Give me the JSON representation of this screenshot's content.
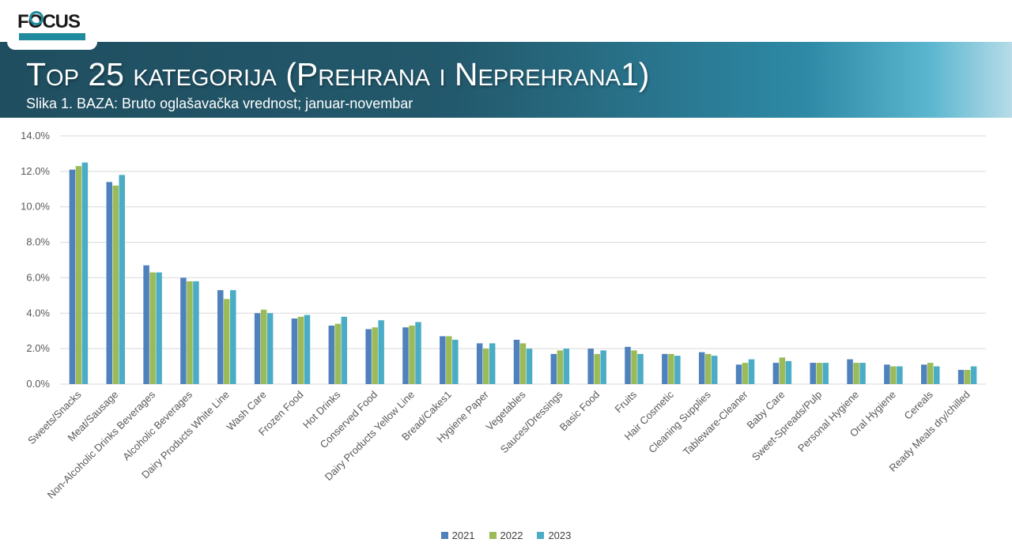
{
  "header": {
    "logo_text": "FOCUS",
    "title": "Top 25 kategorija (Prehrana i Neprehrana1)",
    "subtitle": "Slika 1. BAZA: Bruto oglašavačka vrednost; januar-novembar"
  },
  "colors": {
    "2021": "#4f81bd",
    "2022": "#9bbb59",
    "2023": "#4bacc6",
    "grid": "#d9d9d9"
  },
  "chart_data": {
    "type": "bar",
    "title": "",
    "xlabel": "",
    "ylabel": "",
    "ylim": [
      0,
      14
    ],
    "y_ticks": [
      "0.0%",
      "2.0%",
      "4.0%",
      "6.0%",
      "8.0%",
      "10.0%",
      "12.0%",
      "14.0%"
    ],
    "grid": true,
    "legend_position": "bottom",
    "categories": [
      "Sweets/Snacks",
      "Meat/Sausage",
      "Non-Alcoholic Drinks Beverages",
      "Alcoholic Beverages",
      "Dairy Products White Line",
      "Wash Care",
      "Frozen Food",
      "Hot Drinks",
      "Conserved Food",
      "Dairy Products Yellow Line",
      "Bread/Cakes1",
      "Hygiene Paper",
      "Vegetables",
      "Sauces/Dressings",
      "Basic Food",
      "Fruits",
      "Hair Cosmetic",
      "Cleaning Supplies",
      "Tableware-Cleaner",
      "Baby Care",
      "Sweet-Spreads/Pulp",
      "Personal Hygiene",
      "Oral Hygiene",
      "Cereals",
      "Ready Meals dry/chilled"
    ],
    "series": [
      {
        "name": "2021",
        "values": [
          12.1,
          11.4,
          6.7,
          6.0,
          5.3,
          4.0,
          3.7,
          3.3,
          3.1,
          3.2,
          2.7,
          2.3,
          2.5,
          1.7,
          2.0,
          2.1,
          1.7,
          1.8,
          1.1,
          1.2,
          1.2,
          1.4,
          1.1,
          1.1,
          0.8
        ]
      },
      {
        "name": "2022",
        "values": [
          12.3,
          11.2,
          6.3,
          5.8,
          4.8,
          4.2,
          3.8,
          3.4,
          3.2,
          3.3,
          2.7,
          2.0,
          2.3,
          1.9,
          1.7,
          1.9,
          1.7,
          1.7,
          1.2,
          1.5,
          1.2,
          1.2,
          1.0,
          1.2,
          0.8
        ]
      },
      {
        "name": "2023",
        "values": [
          12.5,
          11.8,
          6.3,
          5.8,
          5.3,
          4.0,
          3.9,
          3.8,
          3.6,
          3.5,
          2.5,
          2.3,
          2.0,
          2.0,
          1.9,
          1.7,
          1.6,
          1.6,
          1.4,
          1.3,
          1.2,
          1.2,
          1.0,
          1.0,
          1.0
        ]
      }
    ]
  }
}
